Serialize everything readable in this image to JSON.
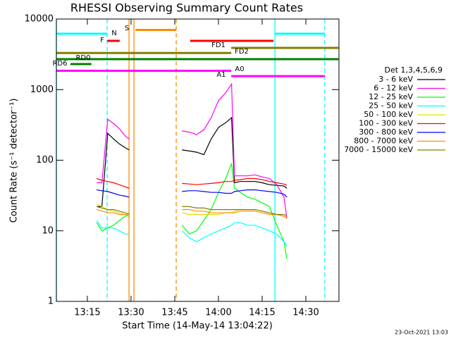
{
  "chart_data": {
    "type": "line",
    "title": "RHESSI Observing Summary Count Rates",
    "xlabel": "Start Time (14-May-14 13:04:22)",
    "ylabel": "Count Rate (s⁻¹ detector⁻¹)",
    "legend_title": "Det 1,3,4,5,6,9",
    "footer": "23-Oct-2021 13:03",
    "log_y": true,
    "xlim": [
      4.367,
      101.367
    ],
    "ylim": [
      1,
      10000
    ],
    "xticks": [
      {
        "value": 15,
        "label": "13:15"
      },
      {
        "value": 30,
        "label": "13:30"
      },
      {
        "value": 45,
        "label": "13:45"
      },
      {
        "value": 60,
        "label": "14:00"
      },
      {
        "value": 75,
        "label": "14:15"
      },
      {
        "value": 90,
        "label": "14:30"
      }
    ],
    "yticks": [
      1,
      10,
      100,
      1000,
      10000
    ],
    "x": [
      18.2,
      20,
      22,
      24,
      26,
      28,
      29.3,
      38,
      47.5,
      50,
      52.5,
      55,
      57.5,
      60,
      62.5,
      64.5,
      65.5,
      67.5,
      70,
      72.5,
      75,
      77.5,
      80,
      82.5,
      83.5
    ],
    "series": [
      {
        "name": "3 - 6 keV",
        "color": "#000000",
        "values": [
          22,
          22,
          240,
          200,
          170,
          150,
          140,
          null,
          140,
          135,
          130,
          120,
          200,
          290,
          340,
          400,
          48,
          50,
          50,
          50,
          48,
          45,
          44,
          43,
          40
        ]
      },
      {
        "name": "6 - 12 keV",
        "color": "#ff00ff",
        "values": [
          48,
          48,
          380,
          330,
          280,
          220,
          200,
          null,
          260,
          250,
          230,
          270,
          400,
          700,
          900,
          1200,
          60,
          60,
          60,
          62,
          58,
          55,
          45,
          30,
          15
        ]
      },
      {
        "name": "12 - 25 keV",
        "color": "#00ff00",
        "values": [
          13,
          10,
          11,
          12,
          14,
          16,
          18,
          null,
          12,
          9,
          10,
          14,
          20,
          35,
          55,
          90,
          40,
          35,
          30,
          28,
          25,
          22,
          12,
          7,
          4
        ]
      },
      {
        "name": "25 - 50 keV",
        "color": "#00ffff",
        "values": [
          14,
          11,
          11,
          11,
          10,
          9,
          9,
          null,
          10,
          8,
          7,
          8,
          9,
          10,
          11,
          12,
          13,
          13,
          12,
          12,
          11,
          10,
          9,
          7,
          6
        ]
      },
      {
        "name": "50 - 100 keV",
        "color": "#e0e000",
        "values": [
          24,
          22,
          20,
          19,
          18,
          17,
          16,
          null,
          18,
          17,
          17,
          17,
          17,
          17,
          18,
          18,
          19,
          20,
          20,
          20,
          19,
          18,
          17,
          16,
          15
        ]
      },
      {
        "name": "100 - 300 keV",
        "color": "#ff0000",
        "values": [
          55,
          52,
          50,
          48,
          45,
          42,
          40,
          null,
          47,
          46,
          45,
          46,
          47,
          48,
          50,
          50,
          52,
          53,
          55,
          55,
          53,
          50,
          48,
          46,
          44
        ]
      },
      {
        "name": "300 - 800 keV",
        "color": "#0000ff",
        "values": [
          38,
          37,
          36,
          34,
          32,
          31,
          30,
          null,
          36,
          37,
          37,
          36,
          35,
          35,
          34,
          34,
          36,
          37,
          38,
          38,
          37,
          36,
          35,
          33,
          30
        ]
      },
      {
        "name": "800 - 7000 keV",
        "color": "#ff8c00",
        "values": [
          20,
          19,
          18,
          18,
          17,
          17,
          16,
          null,
          20,
          20,
          19,
          19,
          18,
          18,
          18,
          18,
          18,
          19,
          19,
          19,
          18,
          17,
          17,
          16,
          15
        ]
      },
      {
        "name": "7000 - 15000 keV",
        "color": "#808000",
        "values": [
          22,
          21,
          20,
          20,
          19,
          18,
          17,
          null,
          22,
          22,
          21,
          21,
          20,
          20,
          20,
          20,
          20,
          20,
          20,
          20,
          19,
          18,
          17,
          17,
          16
        ]
      }
    ],
    "flags": [
      {
        "label": "N",
        "color": "#00ffff",
        "y": 6200,
        "segments": [
          [
            4.367,
            21.8
          ],
          [
            79.4,
            96.5
          ]
        ]
      },
      {
        "label": "F",
        "color": "#ff0000",
        "y": 4900,
        "segments": [
          [
            21.8,
            26.1
          ]
        ]
      },
      {
        "label": "S",
        "color": "#ff8c00",
        "y": 7000,
        "segments": [
          [
            31.5,
            45.5
          ]
        ]
      },
      {
        "color": "#ff0000",
        "y": 4900,
        "segments": [
          [
            50.3,
            78.9
          ]
        ]
      },
      {
        "label": "FD1",
        "color": "#808000",
        "y": 3900,
        "segments": [
          [
            64.4,
            101.2
          ]
        ]
      },
      {
        "label": "FD2",
        "color": "#808000",
        "y": 3300,
        "segments": [
          [
            4.367,
            64.4
          ]
        ]
      },
      {
        "label": "RD0",
        "color": "#008000",
        "y": 2700,
        "segments": [
          [
            4.367,
            101.2
          ]
        ]
      },
      {
        "label": "RD6",
        "color": "#008000",
        "y": 2300,
        "segments": [
          [
            9.2,
            16.4
          ]
        ]
      },
      {
        "label": "A0",
        "color": "#ff00ff",
        "y": 1850,
        "segments": [
          [
            4.367,
            64.4
          ]
        ]
      },
      {
        "label": "A1",
        "color": "#ff00ff",
        "y": 1550,
        "segments": [
          [
            64.4,
            96.5
          ]
        ]
      }
    ],
    "vlines": [
      {
        "x": 4.367,
        "color": "#00ffff",
        "dashed": false
      },
      {
        "x": 21.8,
        "color": "#00ffff",
        "dashed": true
      },
      {
        "x": 29.3,
        "color": "#ff8c00",
        "dashed": false
      },
      {
        "x": 31.0,
        "color": "#ff8c00",
        "dashed": false
      },
      {
        "x": 45.5,
        "color": "#ff8c00",
        "dashed": true
      },
      {
        "x": 79.4,
        "color": "#00ffff",
        "dashed": false
      },
      {
        "x": 96.5,
        "color": "#00ffff",
        "dashed": true
      }
    ]
  }
}
